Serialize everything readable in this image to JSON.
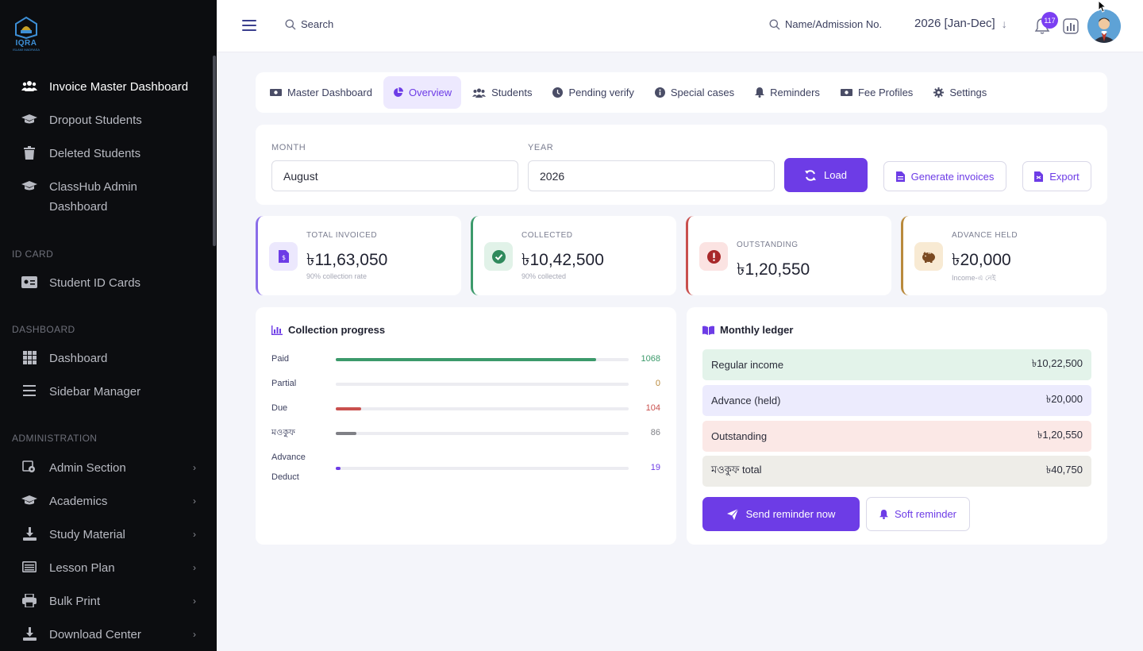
{
  "colors": {
    "accent": "#6d3ce6",
    "sidebar_bg": "#0c0d10",
    "paid": "#3c9a6b",
    "due": "#c9504e",
    "muted_bar": "#7f8086",
    "advance": "#6d3ce6",
    "outstanding": "#c9504e",
    "advance_held": "#b98a3c",
    "collected": "#3c9a6b",
    "invoiced": "#8a6de9"
  },
  "sidebar": {
    "logo_text": "IQRA",
    "logo_sub": "ISLAMI MADRASA",
    "items": [
      {
        "label": "Invoice Master Dashboard",
        "icon": "users-icon"
      },
      {
        "label": "Dropout Students",
        "icon": "graduation-cap-icon"
      },
      {
        "label": "Deleted Students",
        "icon": "trash-icon"
      },
      {
        "label": "ClassHub Admin Dashboard",
        "icon": "graduation-cap-icon"
      }
    ],
    "section_idcard": "ID CARD",
    "idcard_items": [
      {
        "label": "Student ID Cards",
        "icon": "id-card-icon"
      }
    ],
    "section_dashboard": "DASHBOARD",
    "dashboard_items": [
      {
        "label": "Dashboard",
        "icon": "grid-icon"
      },
      {
        "label": "Sidebar Manager",
        "icon": "list-icon"
      }
    ],
    "section_admin": "ADMINISTRATION",
    "admin_items": [
      {
        "label": "Admin Section",
        "icon": "settings-stack-icon"
      },
      {
        "label": "Academics",
        "icon": "graduation-cap-icon"
      },
      {
        "label": "Study Material",
        "icon": "download-icon"
      },
      {
        "label": "Lesson Plan",
        "icon": "list-box-icon"
      },
      {
        "label": "Bulk Print",
        "icon": "printer-icon"
      },
      {
        "label": "Download Center",
        "icon": "download-icon"
      }
    ]
  },
  "topbar": {
    "search_label": "Search",
    "admission_search": "Name/Admission No.",
    "year_selector": "2026 [Jan-Dec]",
    "notification_count": "117"
  },
  "tabs": [
    {
      "label": "Master Dashboard",
      "icon": "money-icon"
    },
    {
      "label": "Overview",
      "icon": "pie-chart-icon"
    },
    {
      "label": "Students",
      "icon": "users-icon"
    },
    {
      "label": "Pending verify",
      "icon": "clock-icon"
    },
    {
      "label": "Special cases",
      "icon": "info-icon"
    },
    {
      "label": "Reminders",
      "icon": "bell-icon"
    },
    {
      "label": "Fee Profiles",
      "icon": "money-icon"
    },
    {
      "label": "Settings",
      "icon": "gear-icon"
    }
  ],
  "filters": {
    "month_label": "MONTH",
    "month_value": "August",
    "year_label": "YEAR",
    "year_value": "2026",
    "load_label": "Load",
    "generate_label": "Generate invoices",
    "export_label": "Export"
  },
  "kpis": [
    {
      "label": "TOTAL INVOICED",
      "value": "৳11,63,050",
      "sub": "90% collection rate",
      "icon": "invoice-icon"
    },
    {
      "label": "COLLECTED",
      "value": "৳10,42,500",
      "sub": "90% collected",
      "icon": "check-circle-icon"
    },
    {
      "label": "OUTSTANDING",
      "value": "৳1,20,550",
      "sub": "",
      "icon": "alert-circle-icon"
    },
    {
      "label": "ADVANCE HELD",
      "value": "৳20,000",
      "sub": "Income-এ নেই",
      "icon": "piggy-bank-icon"
    }
  ],
  "progress": {
    "title": "Collection progress",
    "max": 1200,
    "rows": [
      {
        "label": "Paid",
        "value": 1068,
        "display": "1068"
      },
      {
        "label": "Partial",
        "value": 0,
        "display": "0"
      },
      {
        "label": "Due",
        "value": 104,
        "display": "104"
      },
      {
        "label": "মওকুফ",
        "value": 86,
        "display": "86"
      },
      {
        "label": "Advance Deduct",
        "value": 19,
        "display": "19"
      }
    ]
  },
  "ledger": {
    "title": "Monthly ledger",
    "rows": [
      {
        "label": "Regular income",
        "value": "৳10,22,500"
      },
      {
        "label": "Advance (held)",
        "value": "৳20,000"
      },
      {
        "label": "Outstanding",
        "value": "৳1,20,550"
      },
      {
        "label": "মওকুফ total",
        "value": "৳40,750"
      }
    ],
    "send_label": "Send reminder now",
    "soft_label": "Soft reminder"
  }
}
